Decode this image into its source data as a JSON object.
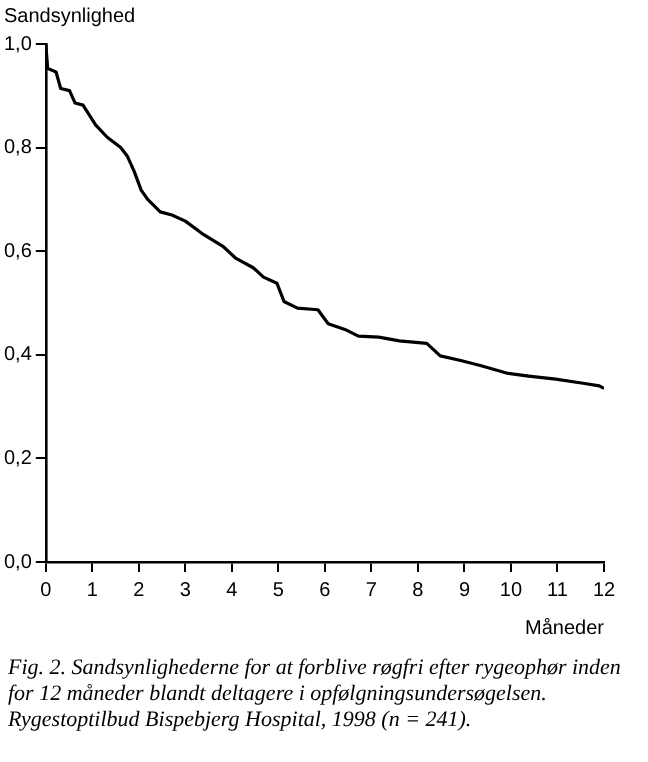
{
  "chart_data": {
    "type": "line",
    "ylabel": "Sandsynlighed",
    "xlabel": "Måneder",
    "color": "#000000",
    "marker": "none",
    "grid": false,
    "legend": false,
    "x": [
      0,
      0.04,
      0.22,
      0.32,
      0.51,
      0.63,
      0.8,
      1.07,
      1.32,
      1.61,
      1.75,
      1.9,
      2.05,
      2.19,
      2.46,
      2.71,
      3.0,
      3.36,
      3.8,
      4.09,
      4.46,
      4.68,
      4.97,
      5.12,
      5.41,
      5.85,
      6.07,
      6.43,
      6.72,
      7.16,
      7.6,
      8.19,
      8.48,
      8.92,
      9.36,
      9.94,
      10.38,
      10.96,
      11.55,
      11.9,
      12
    ],
    "values": [
      1.0,
      0.953,
      0.946,
      0.914,
      0.91,
      0.886,
      0.882,
      0.844,
      0.82,
      0.8,
      0.784,
      0.754,
      0.718,
      0.7,
      0.676,
      0.67,
      0.658,
      0.634,
      0.61,
      0.586,
      0.568,
      0.55,
      0.538,
      0.503,
      0.49,
      0.487,
      0.46,
      0.449,
      0.436,
      0.434,
      0.427,
      0.422,
      0.398,
      0.389,
      0.379,
      0.364,
      0.359,
      0.353,
      0.345,
      0.34,
      0.335
    ],
    "xlim": [
      0,
      12
    ],
    "xticks": [
      0,
      1,
      2,
      3,
      4,
      5,
      6,
      7,
      8,
      9,
      10,
      11,
      12
    ],
    "ylim": [
      0,
      1
    ],
    "yticks": [
      {
        "value": 0,
        "label": "0,0"
      },
      {
        "value": 0.2,
        "label": "0,2"
      },
      {
        "value": 0.4,
        "label": "0,4"
      },
      {
        "value": 0.6,
        "label": "0,6"
      },
      {
        "value": 0.8,
        "label": "0,8"
      },
      {
        "value": 1,
        "label": "1,0"
      }
    ],
    "annotations": [
      "Fig. 2. Sandsynlighederne for at forblive røgfri efter rygeophør inden for 12 måneder blandt deltagere i opfølgningsundersøgelsen. Rygestoptilbud Bispebjerg Hospital, 1998 (n = 241)."
    ]
  }
}
